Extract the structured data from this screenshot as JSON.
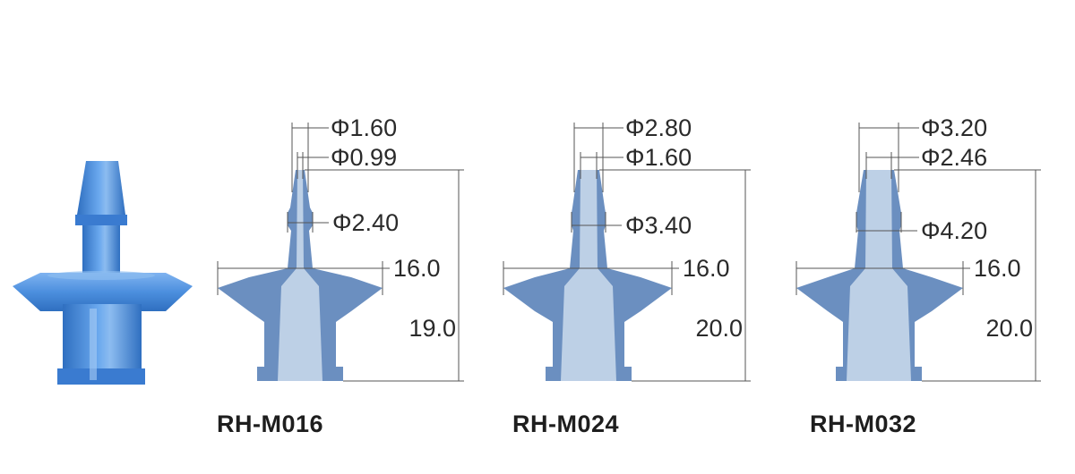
{
  "colors": {
    "body_dark": "#6b8fc0",
    "body_light": "#bdd0e6",
    "photo_blue": "#4c8fde",
    "photo_blue_dark": "#2f6fc0",
    "photo_blue_light": "#8cbcf0",
    "dim_line": "#555555",
    "text": "#2a2a2a"
  },
  "product_photo": {
    "label": ""
  },
  "fittings": [
    {
      "model": "RH-M016",
      "dims": {
        "tip_outer": "Φ1.60",
        "tip_inner": "Φ0.99",
        "barb": "Φ2.40",
        "flange": "16.0",
        "height": "19.0"
      }
    },
    {
      "model": "RH-M024",
      "dims": {
        "tip_outer": "Φ2.80",
        "tip_inner": "Φ1.60",
        "barb": "Φ3.40",
        "flange": "16.0",
        "height": "20.0"
      }
    },
    {
      "model": "RH-M032",
      "dims": {
        "tip_outer": "Φ3.20",
        "tip_inner": "Φ2.46",
        "barb": "Φ4.20",
        "flange": "16.0",
        "height": "20.0"
      }
    }
  ]
}
